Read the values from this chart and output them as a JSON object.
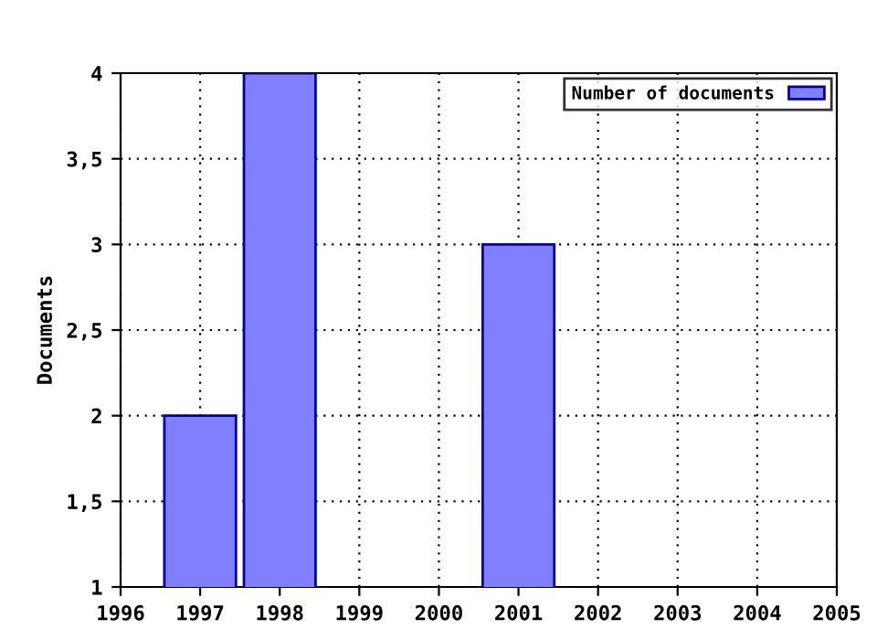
{
  "chart_data": {
    "type": "bar",
    "ylabel": "Documents",
    "x": [
      1997,
      1998,
      2001
    ],
    "series": [
      {
        "name": "Number of documents",
        "color": "#8080ff",
        "values": [
          2,
          4,
          3
        ]
      }
    ],
    "xlim": [
      1996,
      2005
    ],
    "xticks": [
      1996,
      1997,
      1998,
      1999,
      2000,
      2001,
      2002,
      2003,
      2004,
      2005
    ],
    "ylim": [
      1,
      4
    ],
    "yticks": [
      1,
      {
        "value": 1.5,
        "label": "1,5"
      },
      2,
      {
        "value": 2.5,
        "label": "2,5"
      },
      3,
      {
        "value": 3.5,
        "label": "3,5"
      },
      4
    ],
    "grid": true,
    "legend": "top right"
  }
}
